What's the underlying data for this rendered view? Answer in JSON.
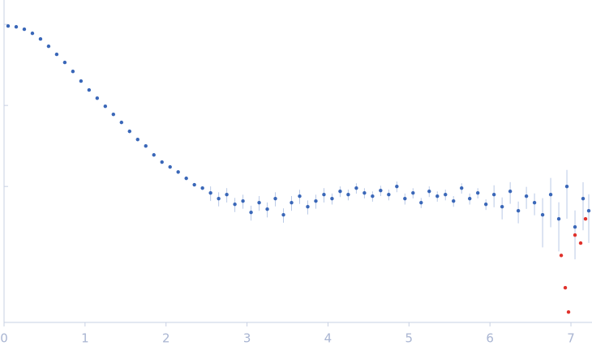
{
  "chart_data": {
    "type": "scatter",
    "yscale": "log",
    "xlim": [
      0,
      7.26
    ],
    "xticks": [
      0,
      1,
      2,
      3,
      4,
      5,
      6,
      7
    ],
    "ylim": [
      0.00021,
      2
    ],
    "yticks": [
      0.01,
      0.1,
      1
    ],
    "series": [
      {
        "color": "#3a67b8",
        "errorcolor": "#b9c9e6",
        "x": [
          0.05,
          0.15,
          0.25,
          0.35,
          0.45,
          0.55,
          0.65,
          0.75,
          0.85,
          0.95,
          1.05,
          1.15,
          1.25,
          1.35,
          1.45,
          1.55,
          1.65,
          1.75,
          1.85,
          1.95,
          2.05,
          2.15,
          2.25,
          2.35,
          2.45,
          2.55,
          2.65,
          2.75,
          2.85,
          2.95,
          3.05,
          3.15,
          3.25,
          3.35,
          3.45,
          3.55,
          3.65,
          3.75,
          3.85,
          3.95,
          4.05,
          4.15,
          4.25,
          4.35,
          4.45,
          4.55,
          4.65,
          4.75,
          4.85,
          4.95,
          5.05,
          5.15,
          5.25,
          5.35,
          5.45,
          5.55,
          5.65,
          5.75,
          5.85,
          5.95,
          6.05,
          6.15,
          6.25,
          6.35,
          6.45,
          6.55,
          6.65,
          6.75,
          6.85,
          6.95,
          7.05,
          7.15,
          7.22
        ],
        "values": [
          0.955,
          0.933,
          0.871,
          0.776,
          0.661,
          0.537,
          0.427,
          0.339,
          0.263,
          0.2,
          0.155,
          0.123,
          0.0977,
          0.0776,
          0.0617,
          0.0479,
          0.038,
          0.0316,
          0.0245,
          0.02,
          0.0174,
          0.0151,
          0.0126,
          0.0105,
          0.00955,
          0.00832,
          0.00708,
          0.00794,
          0.00603,
          0.00661,
          0.00479,
          0.00631,
          0.00525,
          0.00708,
          0.00447,
          0.00631,
          0.00759,
          0.00562,
          0.00661,
          0.00794,
          0.00708,
          0.00871,
          0.00794,
          0.00955,
          0.00832,
          0.00759,
          0.00891,
          0.00794,
          0.01,
          0.00708,
          0.00832,
          0.00631,
          0.00871,
          0.00759,
          0.00794,
          0.00661,
          0.00955,
          0.00708,
          0.00832,
          0.00603,
          0.00794,
          0.00562,
          0.00871,
          0.00501,
          0.00759,
          0.00631,
          0.00447,
          0.00794,
          0.00398,
          0.01,
          0.00316,
          0.00708,
          0.00501
        ],
        "errors": [
          0.0096,
          0.0093,
          0.0087,
          0.0078,
          0.0066,
          0.0054,
          0.0043,
          0.0034,
          0.0026,
          0.002,
          0.0016,
          0.0012,
          0.001,
          0.0008,
          0.0006,
          0.0024,
          0.0019,
          0.0016,
          0.0012,
          0.001,
          0.0009,
          0.0008,
          0.0006,
          0.0005,
          0.0005,
          0.0017,
          0.0014,
          0.0016,
          0.0012,
          0.0013,
          0.001,
          0.0013,
          0.0011,
          0.0014,
          0.0009,
          0.0013,
          0.0015,
          0.0011,
          0.0013,
          0.0016,
          0.0011,
          0.0013,
          0.0012,
          0.0014,
          0.0012,
          0.0011,
          0.0013,
          0.0012,
          0.0015,
          0.0011,
          0.0012,
          0.0009,
          0.0013,
          0.0011,
          0.0012,
          0.001,
          0.0014,
          0.0011,
          0.0012,
          0.0009,
          0.0024,
          0.0017,
          0.0026,
          0.0015,
          0.0023,
          0.0019,
          0.0027,
          0.0048,
          0.0024,
          0.006,
          0.0019,
          0.0042,
          0.003
        ]
      },
      {
        "color": "#e0312b",
        "x": [
          6.88,
          6.93,
          6.97,
          7.05,
          7.12,
          7.18
        ],
        "values": [
          0.00141,
          0.000562,
          0.000282,
          0.00251,
          0.002,
          0.00398
        ]
      }
    ]
  }
}
